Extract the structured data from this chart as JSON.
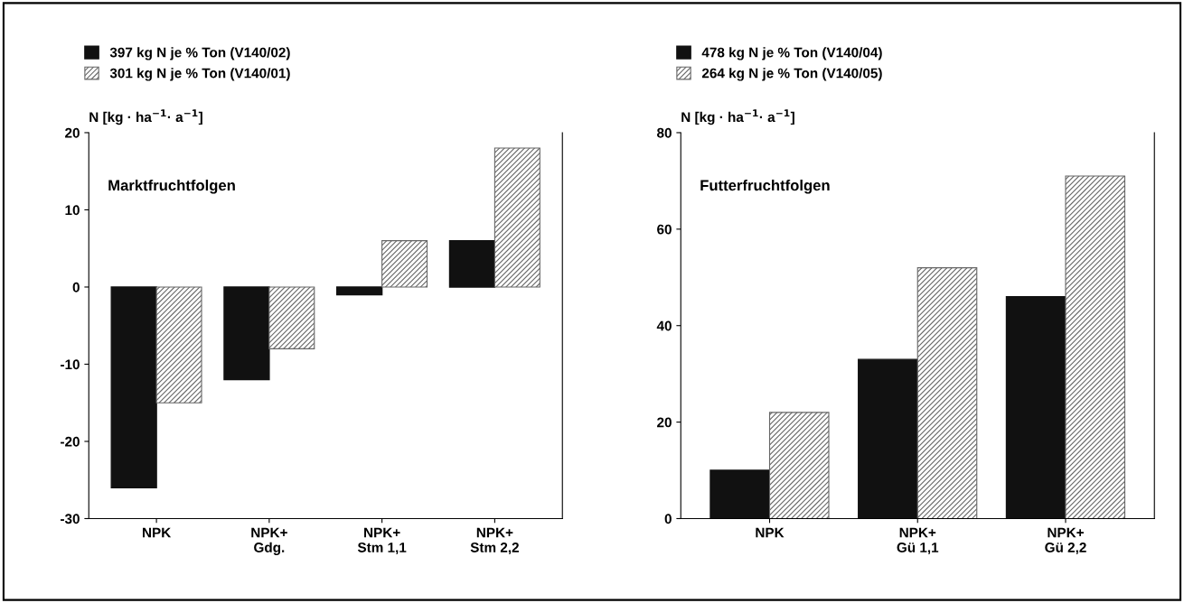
{
  "chart_data": [
    {
      "type": "bar",
      "ylabel": "N [kg · ha$^{−1}$· a$^{−1}$]",
      "annotations": [
        "Marktfruchtfolgen"
      ],
      "categories": [
        "NPK",
        "NPK+\nGdg.",
        "NPK+\nStm 1,1",
        "NPK+\nStm 2,2"
      ],
      "series": [
        {
          "name": "397 kg N je % Ton (V140/02)",
          "color": "#111111",
          "values": [
            -26,
            -12,
            -1,
            6
          ]
        },
        {
          "name": "301 kg N je % Ton (V140/01)",
          "color": "#666666",
          "values": [
            -15,
            -8,
            6,
            18
          ]
        }
      ],
      "ylim": [
        -30,
        20
      ],
      "yticks": [
        -30,
        -20,
        -10,
        0,
        10,
        20
      ],
      "grid": false,
      "legend": "top left"
    },
    {
      "type": "bar",
      "ylabel": "N [kg · ha$^{−1}$· a$^{−1}$]",
      "annotations": [
        "Futterfruchtfolgen"
      ],
      "categories": [
        "NPK",
        "NPK+\nGü 1,1",
        "NPK+\nGü 2,2"
      ],
      "series": [
        {
          "name": "478 kg N je % Ton (V140/04)",
          "color": "#111111",
          "values": [
            10,
            33,
            46
          ]
        },
        {
          "name": "264 kg N je % Ton (V140/05)",
          "color": "#666666",
          "values": [
            22,
            52,
            71
          ]
        }
      ],
      "ylim": [
        0,
        80
      ],
      "yticks": [
        0,
        20,
        40,
        60,
        80
      ],
      "grid": false,
      "legend": "top left"
    }
  ]
}
